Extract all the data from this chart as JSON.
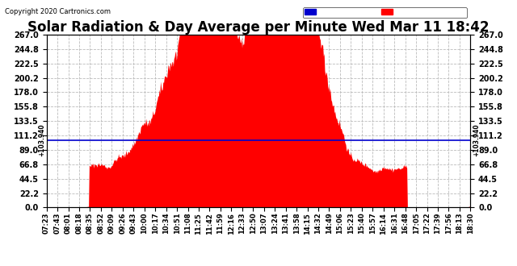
{
  "title": "Solar Radiation & Day Average per Minute Wed Mar 11 18:42",
  "copyright": "Copyright 2020 Cartronics.com",
  "median_value": 103.94,
  "ymin": 0.0,
  "ymax": 267.0,
  "yticks": [
    0.0,
    22.2,
    44.5,
    66.8,
    89.0,
    111.2,
    133.5,
    155.8,
    178.0,
    200.2,
    222.5,
    244.8,
    267.0
  ],
  "x_labels": [
    "07:23",
    "07:43",
    "08:01",
    "08:18",
    "08:35",
    "08:52",
    "09:09",
    "09:26",
    "09:43",
    "10:00",
    "10:17",
    "10:34",
    "10:51",
    "11:08",
    "11:25",
    "11:42",
    "11:59",
    "12:16",
    "12:33",
    "12:50",
    "13:07",
    "13:24",
    "13:41",
    "13:58",
    "14:15",
    "14:32",
    "14:49",
    "15:06",
    "15:23",
    "15:40",
    "15:57",
    "16:14",
    "16:31",
    "16:48",
    "17:05",
    "17:22",
    "17:39",
    "17:56",
    "18:13",
    "18:30"
  ],
  "background_color": "#ffffff",
  "fill_color": "#ff0000",
  "median_line_color": "#0000cd",
  "grid_color": "#bbbbbb",
  "title_fontsize": 12,
  "legend_median_bg": "#0000cd",
  "legend_radiation_bg": "#ff0000",
  "n_points": 667
}
